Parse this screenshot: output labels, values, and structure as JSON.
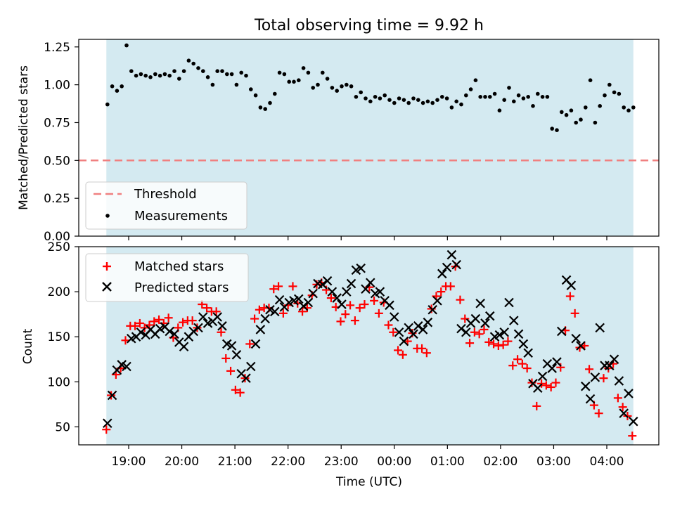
{
  "figure_title": "Total observing time = 9.92 h",
  "x_tick_labels": [
    "19:00",
    "20:00",
    "21:00",
    "22:00",
    "23:00",
    "00:00",
    "01:00",
    "02:00",
    "03:00",
    "04:00"
  ],
  "xlabel": "Time (UTC)",
  "colors": {
    "band": "#d4eaf1",
    "threshold": "#f08080",
    "matched": "#ff0000",
    "predicted": "#000000",
    "measurement": "#000000"
  },
  "chart_data": [
    {
      "type": "scatter",
      "panel": "top",
      "ylabel": "Matched/Predicted stars",
      "ylim": [
        0,
        1.3
      ],
      "yticks": [
        "0.00",
        "0.25",
        "0.50",
        "0.75",
        "1.00",
        "1.25"
      ],
      "x_unit": "hours since 18:00 UTC, observing window 18:35-04:30",
      "legend": {
        "position": "lower-left",
        "entries": [
          "Threshold",
          "Measurements"
        ]
      },
      "threshold": {
        "name": "Threshold",
        "y": 0.5,
        "style": "dashed"
      },
      "series": [
        {
          "name": "Measurements",
          "x": [
            0.6,
            0.69,
            0.78,
            0.87,
            0.96,
            1.05,
            1.14,
            1.23,
            1.32,
            1.41,
            1.5,
            1.59,
            1.68,
            1.77,
            1.86,
            1.95,
            2.04,
            2.13,
            2.22,
            2.31,
            2.4,
            2.49,
            2.58,
            2.67,
            2.76,
            2.85,
            2.94,
            3.03,
            3.12,
            3.21,
            3.3,
            3.39,
            3.48,
            3.57,
            3.66,
            3.75,
            3.84,
            3.93,
            4.02,
            4.11,
            4.2,
            4.29,
            4.38,
            4.47,
            4.56,
            4.65,
            4.74,
            4.83,
            4.92,
            5.01,
            5.1,
            5.19,
            5.28,
            5.37,
            5.46,
            5.55,
            5.64,
            5.73,
            5.82,
            5.91,
            6.0,
            6.09,
            6.18,
            6.27,
            6.36,
            6.45,
            6.54,
            6.63,
            6.72,
            6.81,
            6.9,
            6.99,
            7.08,
            7.17,
            7.26,
            7.35,
            7.44,
            7.53,
            7.62,
            7.71,
            7.8,
            7.89,
            7.98,
            8.07,
            8.16,
            8.25,
            8.34,
            8.43,
            8.52,
            8.61,
            8.7,
            8.79,
            8.88,
            8.97,
            9.06,
            9.15,
            9.24,
            9.33,
            9.42,
            9.51,
            9.6,
            9.69,
            9.78,
            9.87,
            9.96,
            10.05,
            10.14,
            10.23,
            10.32,
            10.41,
            10.5
          ],
          "y": [
            0.87,
            0.99,
            0.96,
            0.99,
            1.26,
            1.09,
            1.06,
            1.07,
            1.06,
            1.05,
            1.07,
            1.06,
            1.07,
            1.06,
            1.09,
            1.04,
            1.09,
            1.16,
            1.14,
            1.11,
            1.09,
            1.05,
            1.0,
            1.09,
            1.09,
            1.07,
            1.07,
            1.0,
            1.08,
            1.06,
            0.97,
            0.93,
            0.85,
            0.84,
            0.88,
            0.94,
            1.08,
            1.07,
            1.02,
            1.02,
            1.03,
            1.11,
            1.08,
            0.98,
            1.0,
            1.08,
            1.04,
            0.98,
            0.96,
            0.99,
            1.0,
            0.99,
            0.92,
            0.95,
            0.91,
            0.89,
            0.92,
            0.91,
            0.93,
            0.9,
            0.88,
            0.91,
            0.9,
            0.88,
            0.91,
            0.9,
            0.88,
            0.89,
            0.88,
            0.9,
            0.92,
            0.91,
            0.85,
            0.89,
            0.87,
            0.93,
            0.97,
            1.03,
            0.92,
            0.92,
            0.92,
            0.94,
            0.83,
            0.9,
            0.98,
            0.89,
            0.93,
            0.91,
            0.92,
            0.86,
            0.94,
            0.92,
            0.92,
            0.71,
            0.7,
            0.82,
            0.8,
            0.83,
            0.75,
            0.77,
            0.85,
            1.03,
            0.75,
            0.86,
            0.93,
            1.0,
            0.95,
            0.94,
            0.85,
            0.83,
            0.85
          ]
        }
      ]
    },
    {
      "type": "scatter",
      "panel": "bottom",
      "ylabel": "Count",
      "ylim": [
        30,
        250
      ],
      "yticks": [
        "50",
        "100",
        "150",
        "200",
        "250"
      ],
      "x_unit": "hours since 18:00 UTC, observing window 18:35-04:30",
      "legend": {
        "position": "upper-left",
        "entries": [
          "Matched stars",
          "Predicted stars"
        ]
      },
      "series": [
        {
          "name": "Matched stars",
          "marker": "+",
          "x": [
            0.58,
            0.67,
            0.76,
            0.85,
            0.94,
            1.03,
            1.12,
            1.21,
            1.3,
            1.39,
            1.48,
            1.57,
            1.66,
            1.75,
            1.84,
            1.93,
            2.02,
            2.11,
            2.2,
            2.29,
            2.38,
            2.47,
            2.56,
            2.65,
            2.74,
            2.83,
            2.92,
            3.01,
            3.1,
            3.19,
            3.28,
            3.37,
            3.46,
            3.55,
            3.64,
            3.73,
            3.82,
            3.91,
            4.0,
            4.09,
            4.18,
            4.27,
            4.36,
            4.45,
            4.54,
            4.63,
            4.72,
            4.81,
            4.9,
            4.99,
            5.08,
            5.17,
            5.26,
            5.35,
            5.44,
            5.53,
            5.62,
            5.71,
            5.8,
            5.89,
            5.98,
            6.07,
            6.16,
            6.25,
            6.34,
            6.43,
            6.52,
            6.61,
            6.7,
            6.79,
            6.88,
            6.97,
            7.06,
            7.15,
            7.24,
            7.33,
            7.42,
            7.51,
            7.6,
            7.69,
            7.78,
            7.87,
            7.96,
            8.05,
            8.14,
            8.23,
            8.32,
            8.41,
            8.5,
            8.59,
            8.68,
            8.77,
            8.86,
            8.95,
            9.04,
            9.13,
            9.22,
            9.31,
            9.4,
            9.49,
            9.58,
            9.67,
            9.76,
            9.85,
            9.94,
            10.03,
            10.12,
            10.21,
            10.3,
            10.39,
            10.48
          ],
          "y": [
            47,
            85,
            108,
            115,
            146,
            162,
            162,
            165,
            160,
            163,
            167,
            169,
            165,
            171,
            149,
            160,
            166,
            168,
            168,
            160,
            186,
            182,
            178,
            178,
            155,
            126,
            112,
            91,
            88,
            104,
            142,
            170,
            180,
            182,
            182,
            203,
            206,
            176,
            185,
            206,
            187,
            178,
            182,
            196,
            208,
            210,
            202,
            193,
            183,
            167,
            175,
            185,
            168,
            182,
            186,
            205,
            190,
            176,
            188,
            163,
            155,
            135,
            130,
            145,
            154,
            137,
            137,
            132,
            181,
            195,
            200,
            206,
            206,
            228,
            191,
            170,
            143,
            155,
            153,
            158,
            144,
            142,
            140,
            141,
            145,
            118,
            125,
            120,
            115,
            99,
            73,
            98,
            96,
            94,
            99,
            116,
            157,
            195,
            176,
            138,
            140,
            114,
            74,
            65,
            104,
            115,
            120,
            82,
            72,
            62,
            40
          ]
        },
        {
          "name": "Predicted stars",
          "marker": "x",
          "x": [
            0.6,
            0.69,
            0.78,
            0.87,
            0.96,
            1.05,
            1.14,
            1.23,
            1.32,
            1.41,
            1.5,
            1.59,
            1.68,
            1.77,
            1.86,
            1.95,
            2.04,
            2.13,
            2.22,
            2.31,
            2.4,
            2.49,
            2.58,
            2.67,
            2.76,
            2.85,
            2.94,
            3.03,
            3.12,
            3.21,
            3.3,
            3.39,
            3.48,
            3.57,
            3.66,
            3.75,
            3.84,
            3.93,
            4.02,
            4.11,
            4.2,
            4.29,
            4.38,
            4.47,
            4.56,
            4.65,
            4.74,
            4.83,
            4.92,
            5.01,
            5.1,
            5.19,
            5.28,
            5.37,
            5.46,
            5.55,
            5.64,
            5.73,
            5.82,
            5.91,
            6.0,
            6.09,
            6.18,
            6.27,
            6.36,
            6.45,
            6.54,
            6.63,
            6.72,
            6.81,
            6.9,
            6.99,
            7.08,
            7.17,
            7.26,
            7.35,
            7.44,
            7.53,
            7.62,
            7.71,
            7.8,
            7.89,
            7.98,
            8.07,
            8.16,
            8.25,
            8.34,
            8.43,
            8.52,
            8.61,
            8.7,
            8.79,
            8.88,
            8.97,
            9.06,
            9.15,
            9.24,
            9.33,
            9.42,
            9.51,
            9.6,
            9.69,
            9.78,
            9.87,
            9.96,
            10.05,
            10.14,
            10.23,
            10.32,
            10.41,
            10.5
          ],
          "y": [
            54,
            85,
            113,
            119,
            117,
            148,
            150,
            155,
            152,
            158,
            153,
            159,
            161,
            156,
            153,
            144,
            139,
            150,
            156,
            160,
            172,
            165,
            167,
            172,
            162,
            142,
            140,
            130,
            109,
            104,
            117,
            142,
            158,
            170,
            180,
            178,
            191,
            183,
            188,
            190,
            192,
            184,
            188,
            198,
            209,
            208,
            212,
            200,
            193,
            186,
            200,
            209,
            224,
            226,
            203,
            210,
            198,
            200,
            190,
            185,
            172,
            155,
            145,
            160,
            153,
            162,
            158,
            166,
            180,
            190,
            220,
            227,
            241,
            230,
            159,
            155,
            165,
            170,
            187,
            165,
            173,
            150,
            152,
            155,
            188,
            168,
            153,
            142,
            132,
            98,
            93,
            106,
            120,
            115,
            122,
            156,
            213,
            207,
            148,
            140,
            95,
            81,
            105,
            160,
            118,
            118,
            125,
            101,
            65,
            87,
            56
          ]
        }
      ]
    }
  ]
}
